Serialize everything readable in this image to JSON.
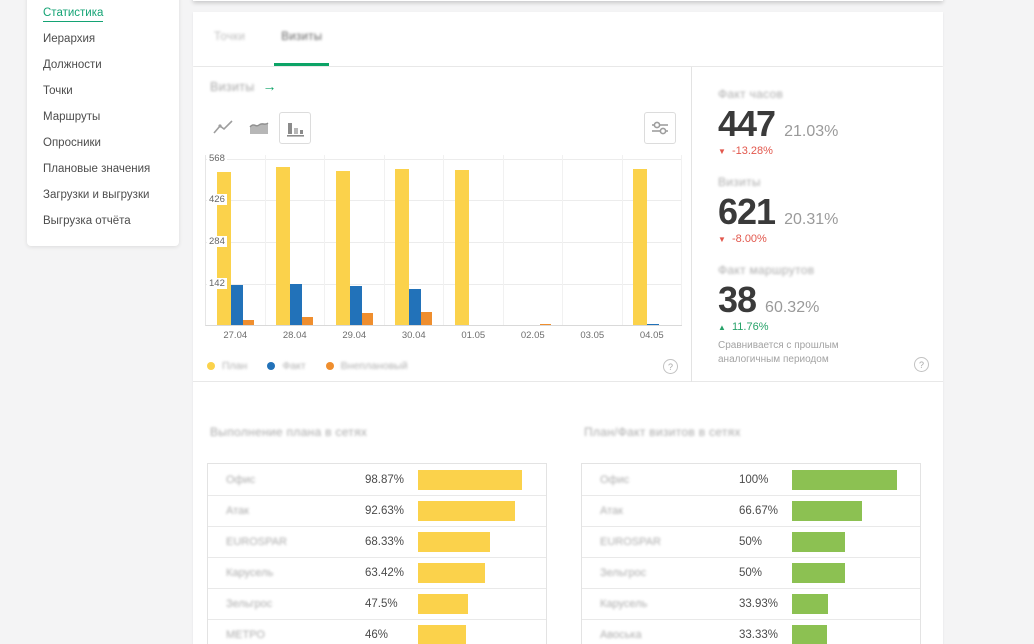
{
  "app": {
    "accent": "#14a374",
    "background": "#f4f4f5"
  },
  "sidebar": {
    "items": [
      {
        "label": "Статистика",
        "active": true
      },
      {
        "label": "Иерархия",
        "active": false
      },
      {
        "label": "Должности",
        "active": false
      },
      {
        "label": "Точки",
        "active": false
      },
      {
        "label": "Маршруты",
        "active": false
      },
      {
        "label": "Опросники",
        "active": false
      },
      {
        "label": "Плановые значения",
        "active": false
      },
      {
        "label": "Загрузки и выгрузки",
        "active": false
      },
      {
        "label": "Выгрузка отчёта",
        "active": false
      }
    ]
  },
  "tabs": [
    {
      "label": "Точки",
      "active": false
    },
    {
      "label": "Визиты",
      "active": true
    }
  ],
  "visits_panel": {
    "title": "Визиты",
    "arrow_icon": "→",
    "toolbar": {
      "chart_type_icons": [
        "line-chart-icon",
        "area-chart-icon",
        "bar-chart-icon"
      ],
      "selected": "bar-chart-icon",
      "settings_icon": "sliders-icon"
    },
    "legend": [
      {
        "label": "План",
        "color": "#fbd24b"
      },
      {
        "label": "Факт",
        "color": "#2272b9"
      },
      {
        "label": "Внеплановый",
        "color": "#ef8e2e"
      }
    ],
    "help_icon": "?"
  },
  "chart_data": {
    "type": "bar",
    "title": "Визиты",
    "categories": [
      "27.04",
      "28.04",
      "29.04",
      "30.04",
      "01.05",
      "02.05",
      "03.05",
      "04.05"
    ],
    "series": [
      {
        "name": "План",
        "color": "#fbd24b",
        "values": [
          520,
          535,
          524,
          530,
          526,
          0,
          0,
          530
        ]
      },
      {
        "name": "Факт",
        "color": "#2272b9",
        "values": [
          136,
          140,
          133,
          123,
          0,
          0,
          0,
          5
        ]
      },
      {
        "name": "Внеплановый",
        "color": "#ef8e2e",
        "values": [
          18,
          26,
          40,
          45,
          0,
          4,
          0,
          0
        ]
      }
    ],
    "xlabel": "",
    "ylabel": "",
    "ylim": [
      0,
      580
    ],
    "yticks": [
      142,
      284,
      426,
      568
    ],
    "grid": true,
    "legend_position": "bottom"
  },
  "kpis": [
    {
      "label": "Факт часов",
      "value": "447",
      "share": "21.03%",
      "delta": "-13.28%",
      "direction": "down"
    },
    {
      "label": "Визиты",
      "value": "621",
      "share": "20.31%",
      "delta": "-8.00%",
      "direction": "down"
    },
    {
      "label": "Факт маршрутов",
      "value": "38",
      "share": "60.32%",
      "delta": "11.76%",
      "direction": "up"
    }
  ],
  "kpi_note": "Сравнивается с прошлым аналогичным периодом",
  "net_tables": [
    {
      "title": "Выполнение плана в сетях",
      "bar_color": "#fbd24b",
      "rows": [
        {
          "label": "Офис",
          "percent": "98.87%",
          "value": 98.87
        },
        {
          "label": "Атак",
          "percent": "92.63%",
          "value": 92.63
        },
        {
          "label": "EUROSPAR",
          "percent": "68.33%",
          "value": 68.33
        },
        {
          "label": "Карусель",
          "percent": "63.42%",
          "value": 63.42
        },
        {
          "label": "Зельгрос",
          "percent": "47.5%",
          "value": 47.5
        },
        {
          "label": "МЕТРО",
          "percent": "46%",
          "value": 46
        }
      ]
    },
    {
      "title": "План/Факт визитов в сетях",
      "bar_color": "#8cc152",
      "rows": [
        {
          "label": "Офис",
          "percent": "100%",
          "value": 100
        },
        {
          "label": "Атак",
          "percent": "66.67%",
          "value": 66.67
        },
        {
          "label": "EUROSPAR",
          "percent": "50%",
          "value": 50
        },
        {
          "label": "Зельгрос",
          "percent": "50%",
          "value": 50
        },
        {
          "label": "Карусель",
          "percent": "33.93%",
          "value": 33.93
        },
        {
          "label": "Авоська",
          "percent": "33.33%",
          "value": 33.33
        }
      ]
    }
  ]
}
